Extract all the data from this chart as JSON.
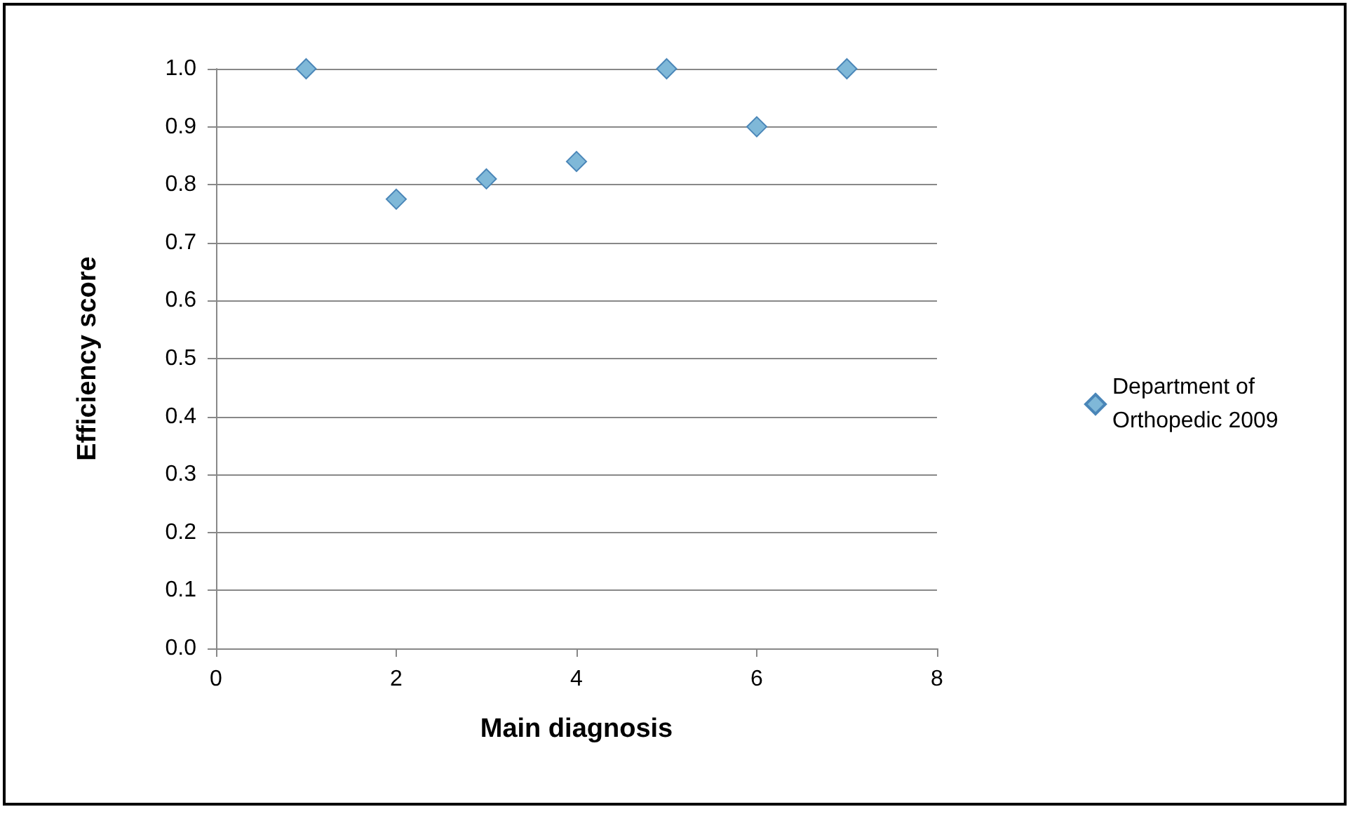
{
  "chart_data": {
    "type": "scatter",
    "xlabel": "Main diagnosis",
    "ylabel": "Efficiency score",
    "x": [
      1,
      2,
      3,
      4,
      5,
      6,
      7
    ],
    "series": [
      {
        "name": "Department of Orthopedic 2009",
        "color": "#7fb8d8",
        "values": [
          1.0,
          0.775,
          0.81,
          0.84,
          1.0,
          0.9,
          1.0
        ]
      }
    ],
    "xlim": [
      0,
      8
    ],
    "xticks": [
      0,
      2,
      4,
      6,
      8
    ],
    "ylim": [
      0,
      1
    ],
    "yticks": [
      {
        "value": 0,
        "label": "0.0"
      },
      {
        "value": 0.1,
        "label": "0.1"
      },
      {
        "value": 0.2,
        "label": "0.2"
      },
      {
        "value": 0.3,
        "label": "0.3"
      },
      {
        "value": 0.4,
        "label": "0.4"
      },
      {
        "value": 0.5,
        "label": "0.5"
      },
      {
        "value": 0.6,
        "label": "0.6"
      },
      {
        "value": 0.7,
        "label": "0.7"
      },
      {
        "value": 0.8,
        "label": "0.8"
      },
      {
        "value": 0.9,
        "label": "0.9"
      },
      {
        "value": 1,
        "label": "1.0"
      }
    ],
    "grid": "y",
    "legend": "right",
    "marker": "diamond"
  }
}
